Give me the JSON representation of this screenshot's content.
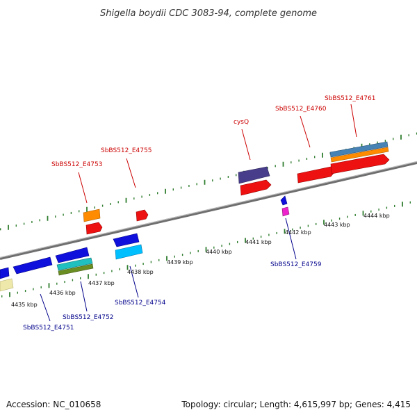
{
  "title": "Shigella boydii CDC 3083-94, complete genome",
  "footer": {
    "accession": "Accession: NC_010658",
    "summary": "Topology: circular; Length: 4,615,997 bp; Genes: 4,415"
  },
  "colors": {
    "backbone": "#888888",
    "tick": "#2f7d2f",
    "label_forward": "#cc0000",
    "label_reverse": "#00008b"
  },
  "scale_labels": [
    "4435 kbp",
    "4436 kbp",
    "4437 kbp",
    "4438 kbp",
    "4439 kbp",
    "4440 kbp",
    "4441 kbp",
    "4442 kbp",
    "4443 kbp",
    "4444 kbp"
  ],
  "gene_labels": {
    "forward": [
      "SbBS512_E4753",
      "SbBS512_E4755",
      "cysQ",
      "SbBS512_E4760",
      "SbBS512_E4761"
    ],
    "reverse": [
      "SbBS512_E4751",
      "SbBS512_E4752",
      "SbBS512_E4754",
      "SbBS512_E4759"
    ]
  }
}
